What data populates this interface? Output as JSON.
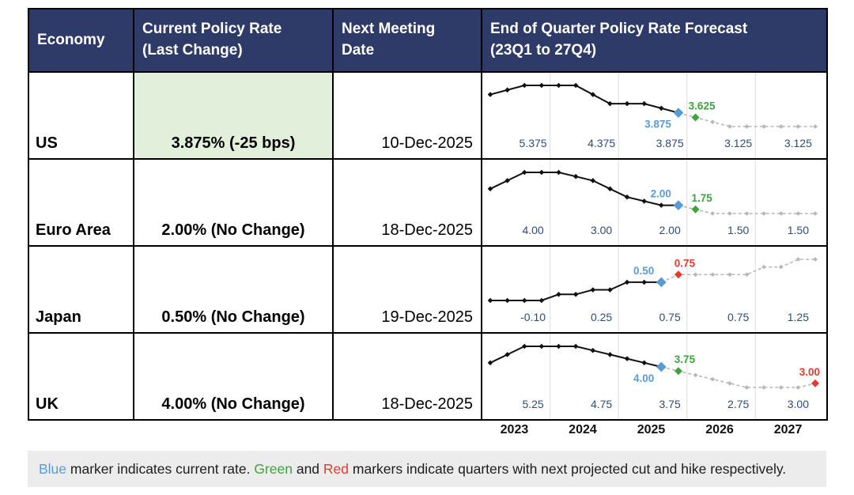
{
  "colors": {
    "header_bg": "#2E3A67",
    "header_text": "#FFFFFF",
    "highlight_bg": "#E2EFDA",
    "history_line": "#111111",
    "forecast_line": "#B7B7B7",
    "grid_line": "#DCDCDC",
    "current_marker": "#5B9BD5",
    "cut_marker": "#3EA43E",
    "hike_marker": "#E8392F",
    "eoy_label": "#2F4B7C",
    "footnote_bg": "#ECECEC"
  },
  "header": {
    "columns": [
      {
        "line1": "Economy",
        "line2": ""
      },
      {
        "line1": "Current Policy Rate",
        "line2": "(Last Change)"
      },
      {
        "line1": "Next Meeting",
        "line2": "Date"
      },
      {
        "line1": "End of Quarter Policy Rate Forecast",
        "line2": "(23Q1 to 27Q4)"
      }
    ]
  },
  "rows": [
    {
      "economy": "US",
      "rate": "3.875% (-25 bps)",
      "meeting_date": "10-Dec-2025",
      "highlight": true
    },
    {
      "economy": "Euro Area",
      "rate": "2.00% (No Change)",
      "meeting_date": "18-Dec-2025",
      "highlight": false
    },
    {
      "economy": "Japan",
      "rate": "0.50% (No Change)",
      "meeting_date": "19-Dec-2025",
      "highlight": false
    },
    {
      "economy": "UK",
      "rate": "4.00% (No Change)",
      "meeting_date": "18-Dec-2025",
      "highlight": false
    }
  ],
  "axis_years": [
    "2023",
    "2024",
    "2025",
    "2026",
    "2027"
  ],
  "chart_data": {
    "type": "line",
    "x_axis": {
      "start": "23Q1",
      "end": "27Q4",
      "points_per_year": 4,
      "year_ticks": [
        "2023",
        "2024",
        "2025",
        "2026",
        "2027"
      ],
      "grid": "vertical-year-separators"
    },
    "legend_position": "footnote",
    "series": [
      {
        "name": "US",
        "values": [
          4.875,
          5.125,
          5.375,
          5.375,
          5.375,
          5.375,
          4.875,
          4.375,
          4.375,
          4.375,
          4.125,
          3.875,
          3.625,
          3.375,
          3.125,
          3.125,
          3.125,
          3.125,
          3.125,
          3.125
        ],
        "current_index": 11,
        "current_value": 3.875,
        "current_label": "3.875",
        "current_label_pos": "below",
        "next_cut_index": 12,
        "next_cut_value": 3.625,
        "next_cut_label": "3.625",
        "next_hike_index": null,
        "next_hike_value": null,
        "next_hike_label": null,
        "eoy_labels": [
          "5.375",
          "4.375",
          "3.875",
          "3.125",
          "3.125"
        ]
      },
      {
        "name": "Euro Area",
        "values": [
          3.0,
          3.5,
          4.0,
          4.0,
          4.0,
          3.75,
          3.5,
          3.0,
          2.5,
          2.25,
          2.0,
          2.0,
          1.75,
          1.5,
          1.5,
          1.5,
          1.5,
          1.5,
          1.5,
          1.5
        ],
        "current_index": 11,
        "current_value": 2.0,
        "current_label": "2.00",
        "current_label_pos": "above",
        "next_cut_index": 12,
        "next_cut_value": 1.75,
        "next_cut_label": "1.75",
        "next_hike_index": null,
        "next_hike_value": null,
        "next_hike_label": null,
        "eoy_labels": [
          "4.00",
          "3.00",
          "2.00",
          "1.50",
          "1.50"
        ]
      },
      {
        "name": "Japan",
        "values": [
          -0.1,
          -0.1,
          -0.1,
          -0.1,
          0.1,
          0.1,
          0.25,
          0.25,
          0.5,
          0.5,
          0.5,
          0.75,
          0.75,
          0.75,
          0.75,
          0.75,
          1.0,
          1.0,
          1.25,
          1.25
        ],
        "current_index": 10,
        "current_value": 0.5,
        "current_label": "0.50",
        "current_label_pos": "above",
        "next_cut_index": null,
        "next_cut_value": null,
        "next_cut_label": null,
        "next_hike_index": 11,
        "next_hike_value": 0.75,
        "next_hike_label": "0.75",
        "eoy_labels": [
          "-0.10",
          "0.25",
          "0.75",
          "0.75",
          "1.25"
        ]
      },
      {
        "name": "UK",
        "values": [
          4.25,
          4.75,
          5.25,
          5.25,
          5.25,
          5.25,
          5.0,
          4.75,
          4.5,
          4.25,
          4.0,
          3.75,
          3.5,
          3.25,
          3.0,
          2.75,
          2.75,
          2.75,
          2.75,
          3.0
        ],
        "current_index": 10,
        "current_value": 4.0,
        "current_label": "4.00",
        "current_label_pos": "below",
        "next_cut_index": 11,
        "next_cut_value": 3.75,
        "next_cut_label": "3.75",
        "next_hike_index": 19,
        "next_hike_value": 3.0,
        "next_hike_label": "3.00",
        "eoy_labels": [
          "5.25",
          "4.75",
          "3.75",
          "2.75",
          "3.00"
        ]
      }
    ]
  },
  "footnote": {
    "segments": [
      {
        "text": "Blue",
        "style": "blue"
      },
      {
        "text": " marker indicates current rate. ",
        "style": "plain"
      },
      {
        "text": "Green",
        "style": "green"
      },
      {
        "text": " and ",
        "style": "plain"
      },
      {
        "text": "Red",
        "style": "red"
      },
      {
        "text": " markers indicate quarters with next projected cut and hike respectively.",
        "style": "plain"
      }
    ]
  }
}
